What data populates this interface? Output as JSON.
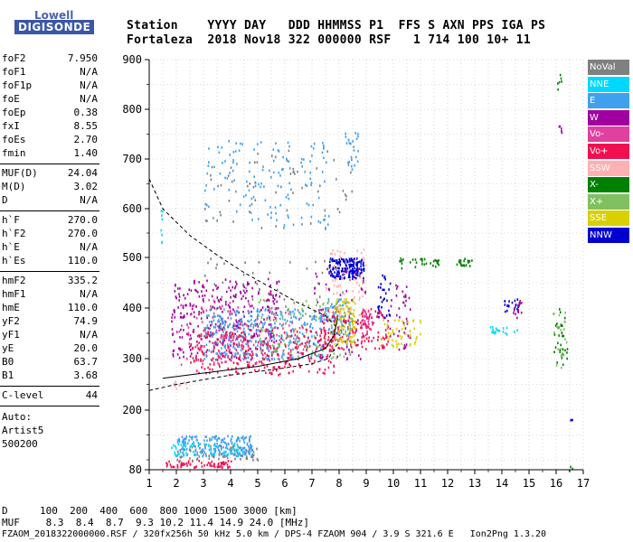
{
  "logo": {
    "line1": "Lowell",
    "line2": "DIGISONDE"
  },
  "header": {
    "row1": "Station    YYYY DAY   DDD HHMMSS P1  FFS S AXN PPS IGA PS",
    "row2": "Fortaleza  2018 Nov18 322 000000 RSF   1 714 100 10+ 11"
  },
  "params": {
    "group1": [
      {
        "label": "foF2",
        "value": "7.950"
      },
      {
        "label": "foF1",
        "value": "N/A"
      },
      {
        "label": "foF1p",
        "value": "N/A"
      },
      {
        "label": "foE",
        "value": "N/A"
      },
      {
        "label": "foEp",
        "value": "0.38"
      },
      {
        "label": "fxI",
        "value": "8.55"
      },
      {
        "label": "foEs",
        "value": "2.70"
      },
      {
        "label": "fmin",
        "value": "1.40"
      }
    ],
    "group2": [
      {
        "label": "MUF(D)",
        "value": "24.04"
      },
      {
        "label": "M(D)",
        "value": "3.02"
      },
      {
        "label": "D",
        "value": "N/A"
      }
    ],
    "group3": [
      {
        "label": "h`F",
        "value": "270.0"
      },
      {
        "label": "h`F2",
        "value": "270.0"
      },
      {
        "label": "h`E",
        "value": "N/A"
      },
      {
        "label": "h`Es",
        "value": "110.0"
      }
    ],
    "group4": [
      {
        "label": "hmF2",
        "value": "335.2"
      },
      {
        "label": "hmF1",
        "value": "N/A"
      },
      {
        "label": "hmE",
        "value": "110.0"
      },
      {
        "label": "yF2",
        "value": "74.9"
      },
      {
        "label": "yF1",
        "value": "N/A"
      },
      {
        "label": "yE",
        "value": "20.0"
      },
      {
        "label": "B0",
        "value": "63.7"
      },
      {
        "label": "B1",
        "value": "3.68"
      }
    ],
    "group5": [
      {
        "label": "C-level",
        "value": "44"
      }
    ],
    "auto": [
      "Auto:",
      "Artist5",
      "500200"
    ]
  },
  "chart_data": {
    "type": "scatter",
    "title": "",
    "xlabel": "",
    "ylabel": "",
    "xlim": [
      1,
      17
    ],
    "ylim": [
      80,
      900
    ],
    "x_ticks": [
      "1",
      "2",
      "3",
      "4",
      "5",
      "6",
      "7",
      "8",
      "9",
      "10",
      "11",
      "12",
      "13",
      "14",
      "15",
      "16",
      "17"
    ],
    "y_ticks": [
      "80",
      "200",
      "300",
      "400",
      "500",
      "600",
      "700",
      "800",
      "900"
    ],
    "legend_position": "right",
    "legend": [
      {
        "name": "NoVal",
        "color": "#808080"
      },
      {
        "name": "NNE",
        "color": "#00d8ff"
      },
      {
        "name": "E",
        "color": "#40a0f0"
      },
      {
        "name": "W",
        "color": "#a000a0"
      },
      {
        "name": "Vo-",
        "color": "#e040a0"
      },
      {
        "name": "Vo+",
        "color": "#f01050"
      },
      {
        "name": "SSW",
        "color": "#ffb0b0"
      },
      {
        "name": "X-",
        "color": "#008000"
      },
      {
        "name": "X+",
        "color": "#80c060"
      },
      {
        "name": "SSE",
        "color": "#d8d000"
      },
      {
        "name": "NNW",
        "color": "#0000d0"
      }
    ],
    "trace_clusters": [
      {
        "series": "NNW",
        "x": [
          7.6,
          8.9
        ],
        "y": [
          460,
          500
        ],
        "n": 180
      },
      {
        "series": "NNW",
        "x": [
          9.4,
          9.9
        ],
        "y": [
          380,
          470
        ],
        "n": 30
      },
      {
        "series": "NNW",
        "x": [
          14.0,
          14.6
        ],
        "y": [
          395,
          420
        ],
        "n": 20
      },
      {
        "series": "NNW",
        "x": [
          16.5,
          16.6
        ],
        "y": [
          180,
          185
        ],
        "n": 3
      },
      {
        "series": "W",
        "x": [
          1.8,
          5.8
        ],
        "y": [
          300,
          460
        ],
        "n": 360
      },
      {
        "series": "W",
        "x": [
          7.0,
          9.0
        ],
        "y": [
          300,
          480
        ],
        "n": 80
      },
      {
        "series": "W",
        "x": [
          9.8,
          10.6
        ],
        "y": [
          320,
          460
        ],
        "n": 40
      },
      {
        "series": "W",
        "x": [
          14.4,
          14.7
        ],
        "y": [
          380,
          420
        ],
        "n": 15
      },
      {
        "series": "W",
        "x": [
          16.0,
          16.3
        ],
        "y": [
          750,
          770
        ],
        "n": 5
      },
      {
        "series": "E",
        "x": [
          3.0,
          7.4
        ],
        "y": [
          300,
          400
        ],
        "n": 340
      },
      {
        "series": "E",
        "x": [
          2.0,
          4.8
        ],
        "y": [
          108,
          150
        ],
        "n": 200
      },
      {
        "series": "E",
        "x": [
          3.0,
          7.6
        ],
        "y": [
          560,
          740
        ],
        "n": 140
      },
      {
        "series": "E",
        "x": [
          7.4,
          8.4
        ],
        "y": [
          350,
          420
        ],
        "n": 80
      },
      {
        "series": "E",
        "x": [
          8.2,
          8.7
        ],
        "y": [
          680,
          760
        ],
        "n": 25
      },
      {
        "series": "NNE",
        "x": [
          1.8,
          4.5
        ],
        "y": [
          110,
          135
        ],
        "n": 60
      },
      {
        "series": "NNE",
        "x": [
          13.5,
          14.6
        ],
        "y": [
          350,
          365
        ],
        "n": 20
      },
      {
        "series": "NNE",
        "x": [
          1.4,
          1.5
        ],
        "y": [
          530,
          600
        ],
        "n": 8
      },
      {
        "series": "Vo+",
        "x": [
          2.5,
          7.8
        ],
        "y": [
          270,
          360
        ],
        "n": 300
      },
      {
        "series": "Vo+",
        "x": [
          7.4,
          9.8
        ],
        "y": [
          320,
          400
        ],
        "n": 150
      },
      {
        "series": "Vo+",
        "x": [
          1.6,
          4.0
        ],
        "y": [
          86,
          100
        ],
        "n": 70
      },
      {
        "series": "Vo-",
        "x": [
          2.0,
          6.8
        ],
        "y": [
          290,
          420
        ],
        "n": 120
      },
      {
        "series": "Vo-",
        "x": [
          8.8,
          9.2
        ],
        "y": [
          340,
          400
        ],
        "n": 30
      },
      {
        "series": "SSE",
        "x": [
          7.8,
          8.6
        ],
        "y": [
          330,
          420
        ],
        "n": 100
      },
      {
        "series": "SSE",
        "x": [
          9.5,
          11.0
        ],
        "y": [
          325,
          380
        ],
        "n": 50
      },
      {
        "series": "X-",
        "x": [
          10.2,
          11.7
        ],
        "y": [
          480,
          500
        ],
        "n": 30
      },
      {
        "series": "X-",
        "x": [
          12.2,
          12.9
        ],
        "y": [
          485,
          500
        ],
        "n": 20
      },
      {
        "series": "X-",
        "x": [
          15.9,
          16.4
        ],
        "y": [
          290,
          400
        ],
        "n": 30
      },
      {
        "series": "X-",
        "x": [
          16.0,
          16.2
        ],
        "y": [
          840,
          880
        ],
        "n": 6
      },
      {
        "series": "X-",
        "x": [
          16.4,
          16.6
        ],
        "y": [
          80,
          88
        ],
        "n": 3
      },
      {
        "series": "X+",
        "x": [
          5.0,
          8.5
        ],
        "y": [
          300,
          420
        ],
        "n": 100
      },
      {
        "series": "X+",
        "x": [
          15.8,
          16.4
        ],
        "y": [
          280,
          400
        ],
        "n": 20
      },
      {
        "series": "NoVal",
        "x": [
          2.0,
          5.0
        ],
        "y": [
          100,
          130
        ],
        "n": 60
      },
      {
        "series": "NoVal",
        "x": [
          3.0,
          8.5
        ],
        "y": [
          300,
          500
        ],
        "n": 80
      },
      {
        "series": "NoVal",
        "x": [
          3.0,
          8.5
        ],
        "y": [
          560,
          720
        ],
        "n": 60
      },
      {
        "series": "SSW",
        "x": [
          7.5,
          9.0
        ],
        "y": [
          380,
          520
        ],
        "n": 60
      },
      {
        "series": "SSW",
        "x": [
          1.8,
          2.4
        ],
        "y": [
          240,
          260
        ],
        "n": 10
      }
    ],
    "curves": [
      {
        "name": "profile",
        "style": "solid",
        "x": [
          1.5,
          3,
          5,
          6.5,
          7.5,
          7.8,
          7.95
        ],
        "y": [
          262,
          272,
          285,
          300,
          320,
          345,
          380
        ]
      },
      {
        "name": "profile-upper",
        "style": "dashed",
        "x": [
          1.0,
          1.5,
          2.5,
          3.5,
          4.5,
          5.5,
          6.5,
          7.5,
          7.95
        ],
        "y": [
          660,
          600,
          545,
          505,
          470,
          440,
          410,
          385,
          360
        ]
      },
      {
        "name": "profile-lower",
        "style": "dashed",
        "x": [
          1.0,
          2,
          4,
          6,
          7,
          7.6,
          7.95
        ],
        "y": [
          238,
          250,
          268,
          282,
          290,
          300,
          330
        ]
      }
    ]
  },
  "footer": {
    "d_label": "D",
    "d_values": "100  200  400  600  800 1000 1500 3000 [km]",
    "muf_label": "MUF",
    "muf_values": " 8.3  8.4  8.7  9.3 10.2 11.4 14.9 24.0 [MHz]",
    "info": "FZAOM_2018322000000.RSF / 320fx256h 50 kHz 5.0 km / DPS-4 FZAOM 904 / 3.9 S 321.6 E   Ion2Png 1.3.20"
  }
}
